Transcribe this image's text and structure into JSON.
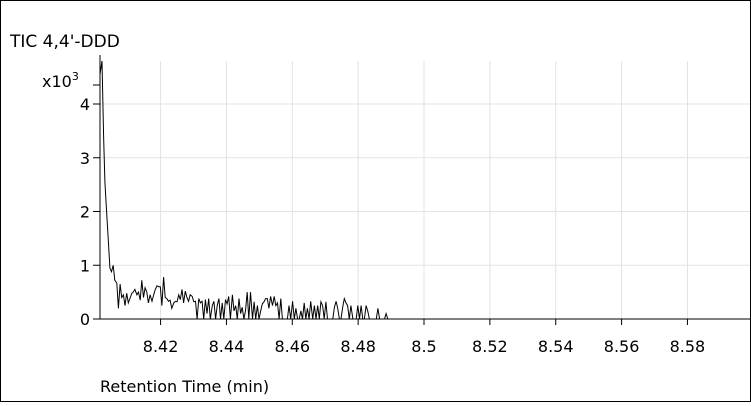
{
  "chart_data": {
    "type": "line",
    "title": "TIC 4,4'-DDD",
    "xlabel": "Retention Time (min)",
    "ylabel_multiplier": "x10",
    "ylabel_exponent": "3",
    "xlim": [
      8.4016,
      8.599
    ],
    "ylim": [
      0,
      4.8
    ],
    "xticks": [
      8.42,
      8.44,
      8.46,
      8.48,
      8.5,
      8.52,
      8.54,
      8.56,
      8.58
    ],
    "xtick_labels": [
      "8.42",
      "8.44",
      "8.46",
      "8.48",
      "8.5",
      "8.52",
      "8.54",
      "8.56",
      "8.58"
    ],
    "yticks": [
      0,
      1,
      2,
      3,
      4
    ],
    "ytick_labels": [
      "0",
      "1",
      "2",
      "3",
      "4"
    ],
    "grid": true,
    "series": [
      {
        "color": "#000000",
        "x": [
          8.4016,
          8.4022,
          8.4027,
          8.4031,
          8.4037,
          8.4041,
          8.4046,
          8.4051,
          8.4056,
          8.4061,
          8.4067,
          8.4072,
          8.4077,
          8.4082,
          8.4087,
          8.4092,
          8.4097,
          8.4102,
          8.4108,
          8.4113,
          8.4117,
          8.4122,
          8.4128,
          8.4133,
          8.4138,
          8.4143,
          8.4148,
          8.4153,
          8.4158,
          8.4163,
          8.4168,
          8.4174,
          8.4179,
          8.4184,
          8.4189,
          8.4194,
          8.4199,
          8.4204,
          8.4209,
          8.4214,
          8.4219,
          8.4224,
          8.4229,
          8.4234,
          8.424,
          8.4245,
          8.425,
          8.4255,
          8.426,
          8.4265,
          8.427,
          8.4275,
          8.428,
          8.4285,
          8.429,
          8.4296,
          8.4301,
          8.4306,
          8.4311,
          8.4316,
          8.4321,
          8.4326,
          8.4331,
          8.4336,
          8.4341,
          8.4346,
          8.4351,
          8.4357,
          8.4362,
          8.4367,
          8.4372,
          8.4377,
          8.4382,
          8.4387,
          8.4392,
          8.4397,
          8.4402,
          8.4407,
          8.4412,
          8.4418,
          8.4423,
          8.4428,
          8.4433,
          8.4438,
          8.4443,
          8.4448,
          8.4453,
          8.4458,
          8.4463,
          8.4468,
          8.4473,
          8.4479,
          8.4484,
          8.4489,
          8.4494,
          8.4499,
          8.4504,
          8.4509,
          8.4514,
          8.4519,
          8.4524,
          8.4529,
          8.4534,
          8.454,
          8.4545,
          8.455,
          8.4555,
          8.456,
          8.4565,
          8.457,
          8.4575,
          8.458,
          8.4585,
          8.459,
          8.4595,
          8.4601,
          8.4606,
          8.4611,
          8.4616,
          8.4621,
          8.4626,
          8.4631,
          8.4636,
          8.4641,
          8.4646,
          8.4651,
          8.4656,
          8.4662,
          8.4667,
          8.4672,
          8.4677,
          8.4682,
          8.4687,
          8.4692,
          8.4697,
          8.4702,
          8.4707,
          8.4712,
          8.4717,
          8.4723,
          8.4728,
          8.4733,
          8.4738,
          8.4743,
          8.4748,
          8.4753,
          8.4758,
          8.4763,
          8.4768,
          8.4773,
          8.4778,
          8.4784,
          8.4789,
          8.4794,
          8.4799,
          8.4804,
          8.4809,
          8.4814,
          8.4819,
          8.4824,
          8.4829,
          8.4834,
          8.4839,
          8.4845,
          8.485,
          8.4855,
          8.486,
          8.4865,
          8.487,
          8.4875,
          8.488,
          8.4885,
          8.489,
          8.4895,
          8.49,
          8.4906,
          8.4911,
          8.4916,
          8.4921,
          8.4926,
          8.4931,
          8.4936,
          8.4941,
          8.4946,
          8.4951,
          8.4956,
          8.4962,
          8.4967,
          8.4972,
          8.4977,
          8.4982,
          8.4987,
          8.4992,
          8.4997,
          8.5002,
          8.5007,
          8.5012,
          8.5017,
          8.5023,
          8.5028,
          8.5033,
          8.5038,
          8.5043,
          8.5048,
          8.5053,
          8.5058,
          8.5063,
          8.5068,
          8.5073,
          8.5078,
          8.5084,
          8.5089,
          8.5094,
          8.5099,
          8.5104,
          8.5109,
          8.5114,
          8.5119,
          8.5124,
          8.5129,
          8.5134,
          8.5139,
          8.5145,
          8.515,
          8.5155,
          8.516,
          8.5165,
          8.517,
          8.5175,
          8.518,
          8.5185,
          8.519,
          8.5195,
          8.52,
          8.5206,
          8.5211,
          8.5216,
          8.5221,
          8.5226,
          8.5231,
          8.5236,
          8.5241,
          8.5246,
          8.5251,
          8.5256,
          8.5261,
          8.5267,
          8.5272,
          8.5277,
          8.5282,
          8.5287,
          8.5292,
          8.5297,
          8.5302,
          8.5307,
          8.5312,
          8.5317,
          8.5322,
          8.5328,
          8.5333,
          8.5338,
          8.5343,
          8.5348,
          8.5353,
          8.5358,
          8.5363,
          8.5368,
          8.5373,
          8.5378,
          8.5383,
          8.5389,
          8.5394,
          8.5399,
          8.5404,
          8.5409,
          8.5414,
          8.5419,
          8.5424,
          8.5429,
          8.5434,
          8.5439,
          8.5445,
          8.545,
          8.5455,
          8.546,
          8.5465,
          8.547,
          8.5475,
          8.548,
          8.5485,
          8.549,
          8.5495,
          8.55,
          8.5506,
          8.5511,
          8.5516,
          8.5521,
          8.5526,
          8.5531,
          8.5536,
          8.5541,
          8.5546,
          8.5551,
          8.5556,
          8.5561,
          8.5567,
          8.5572,
          8.5577,
          8.5582,
          8.5587,
          8.5592,
          8.5597,
          8.5602,
          8.5607,
          8.5612,
          8.5617,
          8.5622,
          8.5628,
          8.5633,
          8.5638,
          8.5643,
          8.5648,
          8.5653,
          8.5658,
          8.5663,
          8.5668,
          8.5673,
          8.5678,
          8.5683,
          8.5689,
          8.5694,
          8.5699,
          8.5704,
          8.5709,
          8.5714,
          8.5719,
          8.5724,
          8.5729,
          8.5734,
          8.5739,
          8.5744,
          8.575,
          8.5755,
          8.576,
          8.5765,
          8.577,
          8.5775,
          8.578,
          8.5785,
          8.579,
          8.5795,
          8.58,
          8.5806,
          8.5811,
          8.5816,
          8.5821,
          8.5826,
          8.5831,
          8.5836,
          8.5841,
          8.5846,
          8.5851,
          8.5856,
          8.5861,
          8.5867,
          8.5872,
          8.5877,
          8.5882,
          8.5887,
          8.5892,
          8.5897,
          8.5902,
          8.5907,
          8.5912,
          8.5917,
          8.5922,
          8.5928,
          8.5933,
          8.5938,
          8.5943,
          8.5948,
          8.5953,
          8.5958,
          8.5963,
          8.5968,
          8.5973,
          8.5978,
          8.5983,
          8.5989
        ],
        "y": [
          4.55,
          4.8,
          3.4,
          2.55,
          1.9,
          1.5,
          0.95,
          0.88,
          1.0,
          0.72,
          0.67,
          0.2,
          0.65,
          0.4,
          0.45,
          0.25,
          0.48,
          0.3,
          0.4,
          0.48,
          0.5,
          0.55,
          0.45,
          0.5,
          0.35,
          0.72,
          0.4,
          0.58,
          0.5,
          0.3,
          0.45,
          0.33,
          0.45,
          0.55,
          0.62,
          0.6,
          0.6,
          0.25,
          0.78,
          0.4,
          0.38,
          0.33,
          0.35,
          0.2,
          0.3,
          0.33,
          0.32,
          0.45,
          0.36,
          0.55,
          0.3,
          0.52,
          0.4,
          0.33,
          0.45,
          0.42,
          0.32,
          0.33,
          0.0,
          0.38,
          0.3,
          0.33,
          0.0,
          0.36,
          0.1,
          0.38,
          0.0,
          0.25,
          0.33,
          0.0,
          0.25,
          0.38,
          0.0,
          0.3,
          0.0,
          0.36,
          0.28,
          0.42,
          0.0,
          0.45,
          0.15,
          0.25,
          0.0,
          0.38,
          0.1,
          0.22,
          0.0,
          0.15,
          0.5,
          0.0,
          0.5,
          0.0,
          0.32,
          0.0,
          0.25,
          0.0,
          0.15,
          0.28,
          0.32,
          0.38,
          0.38,
          0.2,
          0.42,
          0.25,
          0.42,
          0.25,
          0.3,
          0.0,
          0.38,
          0.0,
          0.0,
          0.0,
          0.0,
          0.25,
          0.0,
          0.33,
          0.0,
          0.2,
          0.0,
          0.0,
          0.15,
          0.0,
          0.3,
          0.0,
          0.2,
          0.0,
          0.33,
          0.0,
          0.25,
          0.0,
          0.25,
          0.0,
          0.32,
          0.25,
          0.0,
          0.32,
          0.0,
          0.0,
          0.0,
          0.0,
          0.22,
          0.33,
          0.2,
          0.0,
          0.0,
          0.22,
          0.38,
          0.3,
          0.25,
          0.0,
          0.25,
          0.0,
          0.0,
          0.0,
          0.25,
          0.0,
          0.25,
          0.0,
          0.0,
          0.25,
          0.15,
          0.0,
          0.0,
          0.0,
          0.0,
          0.0,
          0.2,
          0.0,
          0.0,
          0.0,
          0.0,
          0.1,
          0.0,
          0.0,
          0.0,
          0.0,
          0.0,
          0.0,
          0.0,
          0.0,
          0.0,
          0.0,
          0.0,
          0.0,
          0.0,
          0.0,
          0.0,
          0.0,
          0.0,
          0.0,
          0.0,
          0.0,
          0.0,
          0.0,
          0.0,
          0.0,
          0.0,
          0.0,
          0.0,
          0.0,
          0.0,
          0.0,
          0.0,
          0.0,
          0.0,
          0.0,
          0.0,
          0.0,
          0.0,
          0.0,
          0.0,
          0.0,
          0.0,
          0.0,
          0.0,
          0.0,
          0.0,
          0.0,
          0.0,
          0.0,
          0.0,
          0.0,
          0.0,
          0.0,
          0.0,
          0.0,
          0.0,
          0.0,
          0.0,
          0.0,
          0.0,
          0.0,
          0.0,
          0.0,
          0.0,
          0.0,
          0.0,
          0.0,
          0.0,
          0.0,
          0.0,
          0.0,
          0.0,
          0.0,
          0.0,
          0.0,
          0.0,
          0.0,
          0.0,
          0.0,
          0.0,
          0.0,
          0.0,
          0.0,
          0.0,
          0.0,
          0.0,
          0.0,
          0.0,
          0.0,
          0.0,
          0.0,
          0.0,
          0.0,
          0.0,
          0.0,
          0.0,
          0.0,
          0.0,
          0.0,
          0.0,
          0.0,
          0.0,
          0.0,
          0.0,
          0.0,
          0.0,
          0.0,
          0.0,
          0.0,
          0.0,
          0.0,
          0.0,
          0.0,
          0.0,
          0.0,
          0.0,
          0.0,
          0.0,
          0.0,
          0.0,
          0.0,
          0.0,
          0.0,
          0.0,
          0.0,
          0.0,
          0.0,
          0.0,
          0.0,
          0.0,
          0.0,
          0.0,
          0.0,
          0.0,
          0.0,
          0.0,
          0.0,
          0.0,
          0.0,
          0.0,
          0.0,
          0.0,
          0.0,
          0.0,
          0.0,
          0.0,
          0.0,
          0.0,
          0.0,
          0.0,
          0.0,
          0.0,
          0.0,
          0.0,
          0.0,
          0.0,
          0.0,
          0.0,
          0.0,
          0.0,
          0.0,
          0.0,
          0.0,
          0.0,
          0.0,
          0.0,
          0.0,
          0.0,
          0.0,
          0.0,
          0.0,
          0.0,
          0.0,
          0.0,
          0.0,
          0.0,
          0.0,
          0.0,
          0.0,
          0.0,
          0.0,
          0.0,
          0.0,
          0.0,
          0.0,
          0.0,
          0.0,
          0.0,
          0.0,
          0.0,
          0.0,
          0.0,
          0.0,
          0.0,
          0.0,
          0.0,
          0.0,
          0.0,
          0.0,
          0.0,
          0.0,
          0.0,
          0.0,
          0.0,
          0.0,
          0.0,
          0.0,
          0.0,
          0.0,
          0.0,
          0.0,
          0.0,
          0.0,
          0.0,
          0.0,
          0.0,
          0.0,
          0.0
        ]
      }
    ]
  }
}
